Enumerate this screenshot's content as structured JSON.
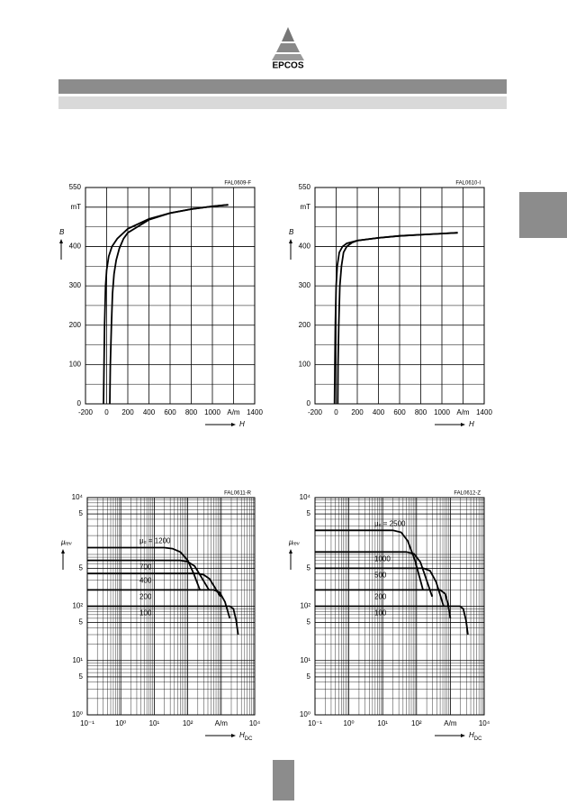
{
  "header": {
    "logo": "EPCOS"
  },
  "chart_data": [
    {
      "type": "line",
      "code": "FAL0609-F",
      "xlabel": "H",
      "ylabel": "B",
      "grid": true,
      "xlim": [
        -200,
        1400
      ],
      "xticks": [
        -200,
        0,
        200,
        400,
        600,
        800,
        1000,
        {
          "value": 1200,
          "label": "A/m"
        },
        1400
      ],
      "ylim": [
        0,
        550
      ],
      "yticks": [
        0,
        100,
        200,
        300,
        400,
        {
          "value": 500,
          "label": "mT"
        },
        550
      ],
      "series": [
        {
          "color": "#000000",
          "x": [
            -30,
            -25,
            -20,
            -10,
            0,
            20,
            50,
            100,
            200,
            400,
            600,
            800,
            1000,
            1150
          ],
          "values": [
            0,
            100,
            200,
            300,
            340,
            375,
            400,
            420,
            445,
            470,
            485,
            495,
            502,
            506
          ]
        },
        {
          "color": "#000000",
          "x": [
            30,
            35,
            45,
            55,
            70,
            90,
            120,
            160,
            200,
            400,
            600,
            800,
            1000,
            1150
          ],
          "values": [
            0,
            100,
            200,
            280,
            330,
            365,
            395,
            420,
            435,
            468,
            485,
            495,
            502,
            506
          ]
        }
      ]
    },
    {
      "type": "line",
      "code": "FAL0610-I",
      "xlabel": "H",
      "ylabel": "B",
      "grid": true,
      "xlim": [
        -200,
        1400
      ],
      "xticks": [
        -200,
        0,
        200,
        400,
        600,
        800,
        1000,
        {
          "value": 1200,
          "label": "A/m"
        },
        1400
      ],
      "ylim": [
        0,
        550
      ],
      "yticks": [
        0,
        100,
        200,
        300,
        400,
        {
          "value": 500,
          "label": "mT"
        },
        550
      ],
      "series": [
        {
          "color": "#000000",
          "x": [
            -15,
            -12,
            -8,
            0,
            10,
            30,
            60,
            100,
            200,
            400,
            600,
            800,
            1000,
            1150
          ],
          "values": [
            0,
            100,
            200,
            300,
            350,
            385,
            400,
            408,
            415,
            422,
            427,
            430,
            433,
            435
          ]
        },
        {
          "color": "#000000",
          "x": [
            15,
            18,
            25,
            35,
            50,
            70,
            100,
            150,
            200,
            400,
            600,
            800,
            1000,
            1150
          ],
          "values": [
            0,
            100,
            200,
            300,
            350,
            385,
            400,
            410,
            415,
            422,
            427,
            430,
            433,
            435
          ]
        }
      ]
    },
    {
      "type": "line",
      "code": "FAL0611-R",
      "xlabel": "H",
      "xlabel_sub": "DC",
      "ylabel": "μᵣₑᵥ",
      "grid": true,
      "log_scale": true,
      "xlim": [
        0.1,
        10000
      ],
      "xticks": [
        {
          "value": 0.1,
          "label": "10⁻¹"
        },
        {
          "value": 1,
          "label": "10⁰"
        },
        {
          "value": 10,
          "label": "10¹"
        },
        {
          "value": 100,
          "label": "10²"
        },
        {
          "value": 1000,
          "label": "A/m"
        },
        {
          "value": 10000,
          "label": "10⁴"
        }
      ],
      "ylim": [
        1,
        10000
      ],
      "yticks": [
        {
          "value": 1,
          "label": "10⁰"
        },
        5,
        {
          "value": 10,
          "label": "10¹"
        },
        {
          "value": 50,
          "label": "5"
        },
        {
          "value": 100,
          "label": "10²"
        },
        {
          "value": 500,
          "label": "5"
        },
        {
          "value": 5000,
          "label": "5"
        },
        {
          "value": 10000,
          "label": "10⁴"
        }
      ],
      "series": [
        {
          "name": "μₑ = 1200",
          "color": "#000000",
          "x": [
            0.1,
            20,
            35,
            60,
            100,
            150,
            230
          ],
          "values": [
            1200,
            1200,
            1150,
            1000,
            700,
            400,
            200
          ]
        },
        {
          "name": "700",
          "color": "#000000",
          "x": [
            0.1,
            60,
            100,
            160,
            250,
            430
          ],
          "values": [
            700,
            700,
            660,
            550,
            350,
            200
          ]
        },
        {
          "name": "400",
          "color": "#000000",
          "x": [
            0.1,
            200,
            300,
            450,
            650,
            950
          ],
          "values": [
            400,
            400,
            380,
            320,
            220,
            150
          ]
        },
        {
          "name": "200",
          "color": "#000000",
          "x": [
            0.1,
            600,
            900,
            1300,
            1800
          ],
          "values": [
            200,
            200,
            180,
            120,
            60
          ]
        },
        {
          "name": "100",
          "color": "#000000",
          "x": [
            0.1,
            1800,
            2300,
            2800,
            3200
          ],
          "values": [
            100,
            100,
            90,
            55,
            30
          ]
        }
      ]
    },
    {
      "type": "line",
      "code": "FAL0612-Z",
      "xlabel": "H",
      "xlabel_sub": "DC",
      "ylabel": "μᵣₑᵥ",
      "grid": true,
      "log_scale": true,
      "xlim": [
        0.1,
        10000
      ],
      "xticks": [
        {
          "value": 0.1,
          "label": "10⁻¹"
        },
        {
          "value": 1,
          "label": "10⁰"
        },
        {
          "value": 10,
          "label": "10¹"
        },
        {
          "value": 100,
          "label": "10²"
        },
        {
          "value": 1000,
          "label": "A/m"
        },
        {
          "value": 10000,
          "label": "10⁴"
        }
      ],
      "ylim": [
        1,
        10000
      ],
      "yticks": [
        {
          "value": 1,
          "label": "10⁰"
        },
        5,
        {
          "value": 10,
          "label": "10¹"
        },
        {
          "value": 50,
          "label": "5"
        },
        {
          "value": 100,
          "label": "10²"
        },
        {
          "value": 500,
          "label": "5"
        },
        {
          "value": 5000,
          "label": "5"
        },
        {
          "value": 10000,
          "label": "10⁴"
        }
      ],
      "series": [
        {
          "name": "μₑ = 2500",
          "color": "#000000",
          "x": [
            0.1,
            20,
            35,
            55,
            90,
            155
          ],
          "values": [
            2500,
            2500,
            2300,
            1600,
            700,
            200
          ]
        },
        {
          "name": "1000",
          "color": "#000000",
          "x": [
            0.1,
            50,
            85,
            130,
            200,
            290
          ],
          "values": [
            1000,
            1000,
            920,
            650,
            300,
            150
          ]
        },
        {
          "name": "500",
          "color": "#000000",
          "x": [
            0.1,
            160,
            250,
            380,
            630
          ],
          "values": [
            500,
            500,
            450,
            280,
            100
          ]
        },
        {
          "name": "200",
          "color": "#000000",
          "x": [
            0.1,
            500,
            700,
            850,
            1000
          ],
          "values": [
            200,
            200,
            170,
            110,
            60
          ]
        },
        {
          "name": "100",
          "color": "#000000",
          "x": [
            0.1,
            1900,
            2400,
            2900,
            3300
          ],
          "values": [
            100,
            100,
            90,
            55,
            30
          ]
        }
      ]
    }
  ]
}
